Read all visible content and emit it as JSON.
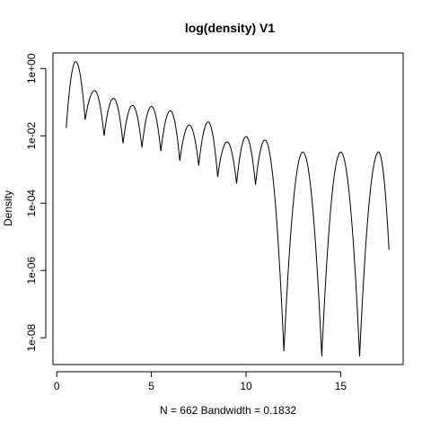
{
  "chart_data": {
    "type": "line",
    "title": "log(density) V1",
    "xlabel": "N = 662   Bandwidth = 0.1832",
    "ylabel": "Density",
    "log_y": true,
    "xlim": [
      -0.2,
      18.3
    ],
    "ylim": [
      1.6e-09,
      2.9
    ],
    "x_ticks": [
      0,
      5,
      10,
      15
    ],
    "x_tick_labels": [
      "0",
      "5",
      "10",
      "15"
    ],
    "y_ticks": [
      1e-08,
      1e-06,
      0.0001,
      0.01,
      1
    ],
    "y_tick_labels": [
      "1e-08",
      "1e-06",
      "1e-04",
      "1e-02",
      "1e+00"
    ],
    "grid": false,
    "series": [
      {
        "line_color": "#000000",
        "x": [
          0.5,
          1.0,
          1.5,
          2.0,
          2.5,
          3.0,
          3.5,
          4.0,
          4.5,
          5.0,
          5.5,
          6.0,
          6.5,
          7.0,
          7.5,
          8.0,
          8.5,
          9.0,
          9.5,
          10.0,
          10.5,
          11.0,
          12.0,
          13.0,
          14.0,
          15.0,
          16.0,
          17.0,
          17.55
        ],
        "y": [
          0.017,
          1.6,
          0.03,
          0.22,
          0.01,
          0.13,
          0.006,
          0.08,
          0.0045,
          0.075,
          0.0035,
          0.056,
          0.0018,
          0.021,
          0.0013,
          0.026,
          0.0006,
          0.0066,
          0.00038,
          0.0095,
          0.00035,
          0.0075,
          4e-09,
          0.0033,
          2.8e-09,
          0.0033,
          2.8e-09,
          0.0033,
          4.2e-06
        ]
      }
    ]
  }
}
